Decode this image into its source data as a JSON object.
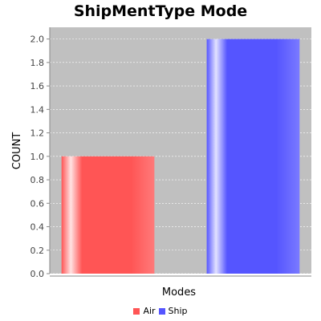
{
  "chart_data": {
    "type": "bar",
    "title": "ShipMentType Mode",
    "xlabel": "Modes",
    "ylabel": "COUNT",
    "categories": [
      ""
    ],
    "series": [
      {
        "name": "Air",
        "values": [
          1.0
        ],
        "color": "#ff5555"
      },
      {
        "name": "Ship",
        "values": [
          2.0
        ],
        "color": "#5555ff"
      }
    ],
    "ylim": [
      0,
      2.1
    ],
    "yticks": [
      "0.0",
      "0.2",
      "0.4",
      "0.6",
      "0.8",
      "1.0",
      "1.2",
      "1.4",
      "1.6",
      "1.8",
      "2.0"
    ],
    "grid": true,
    "legend_position": "bottom",
    "plot_background": "#c0c0c0"
  }
}
